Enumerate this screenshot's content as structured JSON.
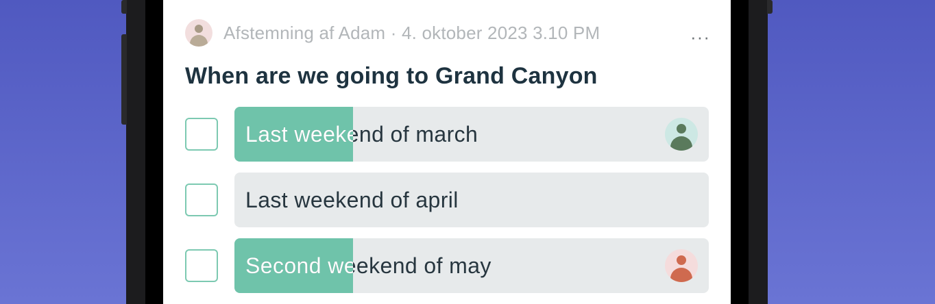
{
  "post": {
    "meta": "Afstemning af Adam · 4. oktober 2023 3.10 PM",
    "more_icon": "more-horizontal-icon",
    "title": "When are we going to Grand Canyon"
  },
  "options": [
    {
      "label": "Last weekend of march",
      "vote_fraction": 0.25,
      "voter_avatar": {
        "bg": "#cde8e4",
        "figure": "#5a7a5c"
      }
    },
    {
      "label": "Last weekend of april",
      "vote_fraction": 0,
      "voter_avatar": null
    },
    {
      "label": "Second weekend of may",
      "vote_fraction": 0.25,
      "voter_avatar": {
        "bg": "#f5dcdc",
        "figure": "#cf6a4f"
      }
    }
  ],
  "colors": {
    "background_top": "#5059c0",
    "background_bottom": "#6a74d4",
    "accent_fill": "#6fc3aa",
    "checkbox_border": "#7cc9b1",
    "bar_bg": "#e7eaeb",
    "title_text": "#1e3340"
  }
}
